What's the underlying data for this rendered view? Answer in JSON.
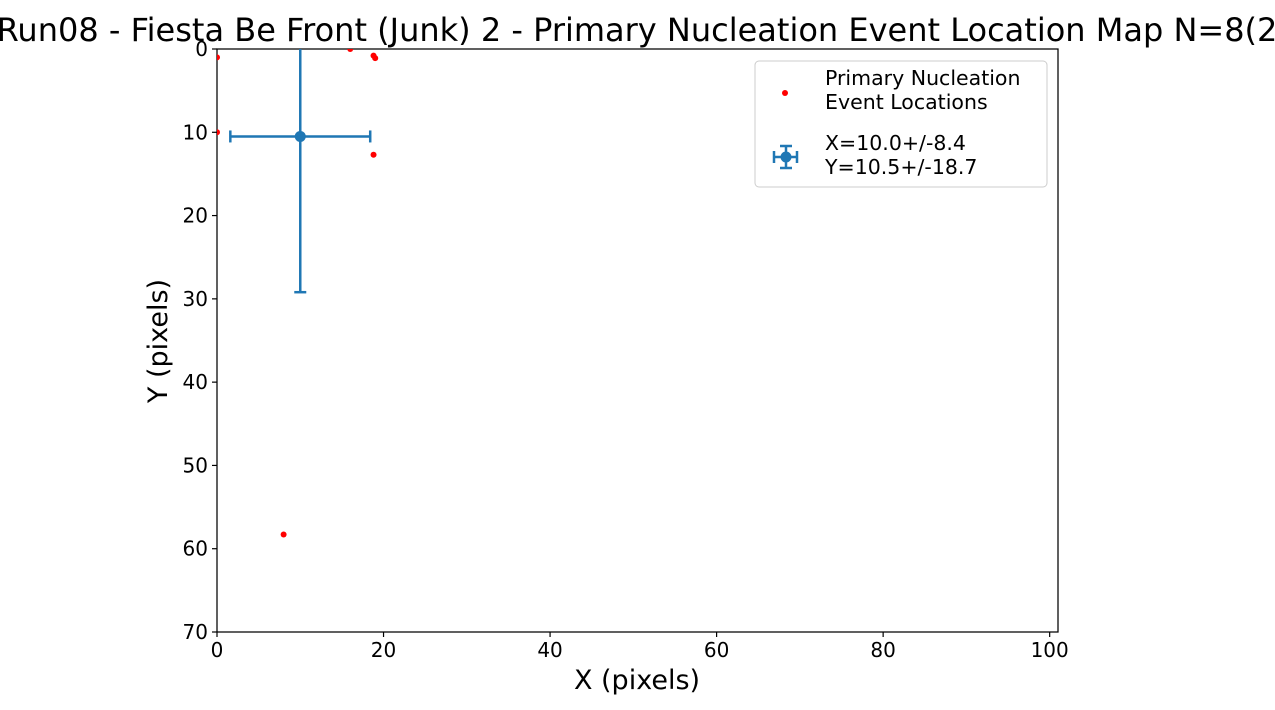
{
  "chart_data": {
    "type": "scatter",
    "title": "Run08 - Fiesta Be Front (Junk) 2 - Primary Nucleation Event Location Map N=8(2",
    "xlabel": "X (pixels)",
    "ylabel": "Y (pixels)",
    "xlim": [
      0,
      101
    ],
    "ylim": [
      70,
      0
    ],
    "y_inverted": true,
    "xticks": [
      0,
      20,
      40,
      60,
      80,
      100
    ],
    "yticks": [
      0,
      10,
      20,
      30,
      40,
      50,
      60,
      70
    ],
    "grid": false,
    "legend_position": "upper right",
    "series": [
      {
        "name": "Primary Nucleation Event Locations",
        "marker": "point",
        "color": "#ff0000",
        "points": [
          {
            "x": 0.0,
            "y": 1.0
          },
          {
            "x": 0.0,
            "y": 10.0
          },
          {
            "x": 16.0,
            "y": 0.0
          },
          {
            "x": 18.8,
            "y": 0.8
          },
          {
            "x": 19.0,
            "y": 1.1
          },
          {
            "x": 18.8,
            "y": 12.7
          },
          {
            "x": 8.0,
            "y": 58.3
          }
        ]
      },
      {
        "name": "X=10.0+/-8.4 Y=10.5+/-18.7",
        "marker": "errorbar",
        "color": "#1f77b4",
        "x": 10.0,
        "y": 10.5,
        "xerr": 8.4,
        "yerr": 18.7
      }
    ],
    "legend": {
      "entry1_line1": "Primary Nucleation",
      "entry1_line2": "Event Locations",
      "entry2_line1": "X=10.0+/-8.4",
      "entry2_line2": "Y=10.5+/-18.7"
    }
  }
}
